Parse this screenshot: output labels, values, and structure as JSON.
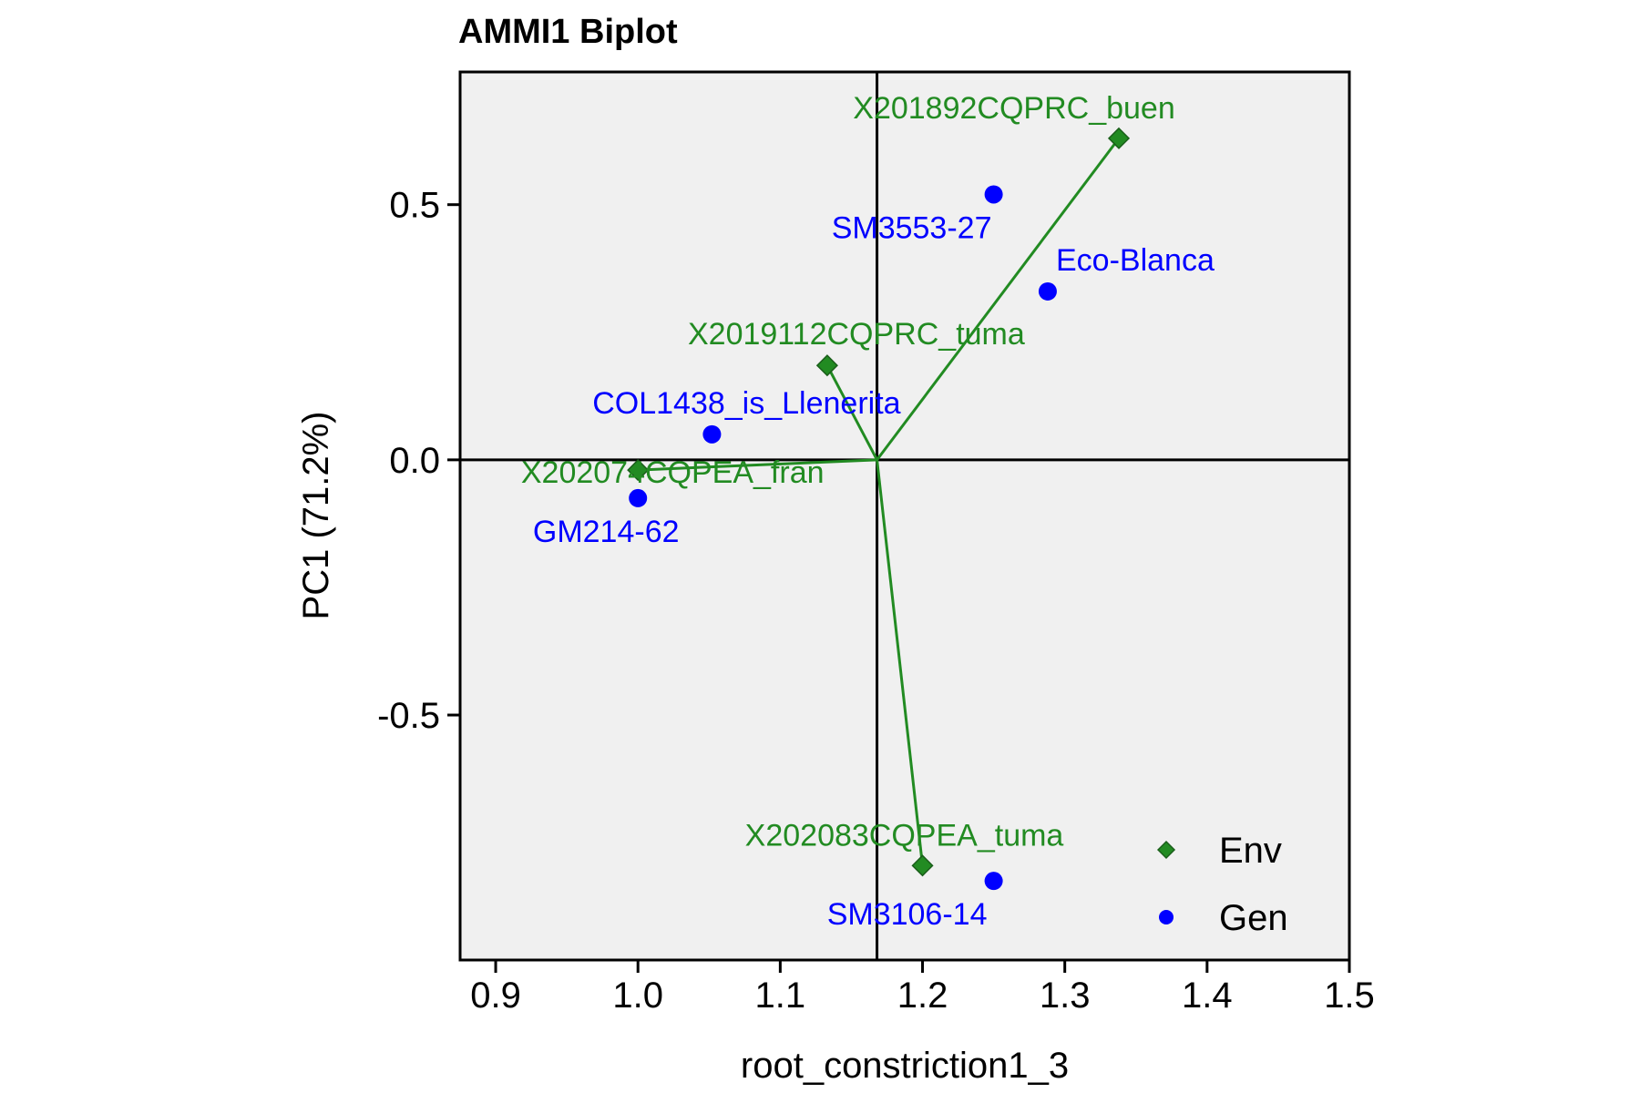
{
  "chart_data": {
    "type": "scatter",
    "title": "AMMI1 Biplot",
    "xlabel": "root_constriction1_3",
    "ylabel": "PC1 (71.2%)",
    "xlim": [
      0.875,
      1.5
    ],
    "ylim": [
      -0.98,
      0.76
    ],
    "xticks": [
      0.9,
      1.0,
      1.1,
      1.2,
      1.3,
      1.4,
      1.5
    ],
    "xtick_labels": [
      "0.9",
      "1.0",
      "1.1",
      "1.2",
      "1.3",
      "1.4",
      "1.5"
    ],
    "yticks": [
      -0.5,
      0.0,
      0.5
    ],
    "ytick_labels": [
      "-0.5",
      "0.0",
      "0.5"
    ],
    "reference_lines": {
      "x": 1.168,
      "y": 0.0
    },
    "grid": false,
    "background": "#f0f0f0",
    "legend_position": "bottom-right",
    "series": [
      {
        "name": "Env",
        "marker": "diamond",
        "color": "#228b22",
        "vectors_from_origin": true,
        "points": [
          {
            "label": "X201892CQPRC_buen",
            "x": 1.338,
            "y": 0.63
          },
          {
            "label": "X2019112CQPRC_tuma",
            "x": 1.133,
            "y": 0.185
          },
          {
            "label": "X202074CQPEA_fran",
            "x": 1.0,
            "y": -0.02
          },
          {
            "label": "X202083CQPEA_tuma",
            "x": 1.2,
            "y": -0.795
          }
        ]
      },
      {
        "name": "Gen",
        "marker": "circle",
        "color": "#0000ff",
        "vectors_from_origin": false,
        "points": [
          {
            "label": "SM3553-27",
            "x": 1.25,
            "y": 0.52
          },
          {
            "label": "Eco-Blanca",
            "x": 1.288,
            "y": 0.33
          },
          {
            "label": "COL1438_is_Llenerita",
            "x": 1.052,
            "y": 0.05
          },
          {
            "label": "GM214-62",
            "x": 1.0,
            "y": -0.075
          },
          {
            "label": "SM3106-14",
            "x": 1.25,
            "y": -0.825
          }
        ]
      }
    ],
    "legend": [
      {
        "label": "Env",
        "marker": "diamond",
        "color": "#228b22"
      },
      {
        "label": "Gen",
        "marker": "circle",
        "color": "#0000ff"
      }
    ]
  }
}
